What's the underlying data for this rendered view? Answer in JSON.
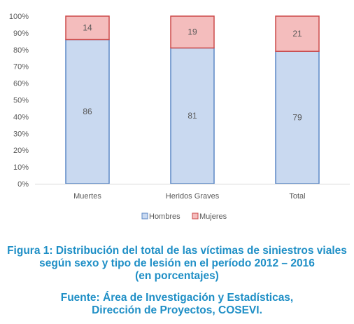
{
  "chart_data": {
    "type": "bar",
    "stacked": true,
    "percent": true,
    "categories": [
      "Muertes",
      "Heridos Graves",
      "Total"
    ],
    "series": [
      {
        "name": "Hombres",
        "values": [
          86,
          81,
          79
        ],
        "color": "#c9d9f0",
        "edge": "#5b87c6"
      },
      {
        "name": "Mujeres",
        "values": [
          14,
          19,
          21
        ],
        "color": "#f4bdbd",
        "edge": "#cc4a4a"
      }
    ],
    "ylim": [
      0,
      100
    ],
    "yticks": [
      "0%",
      "10%",
      "20%",
      "30%",
      "40%",
      "50%",
      "60%",
      "70%",
      "80%",
      "90%",
      "100%"
    ],
    "legend_position": "bottom",
    "grid": false
  },
  "caption": {
    "line1": "Figura 1: Distribución del total de las víctimas de siniestros viales",
    "line2": "según sexo y tipo de lesión en el período 2012 – 2016",
    "line3": "(en porcentajes)",
    "source1": "Fuente: Área de Investigación y Estadísticas,",
    "source2": "Dirección de Proyectos, COSEVI."
  }
}
